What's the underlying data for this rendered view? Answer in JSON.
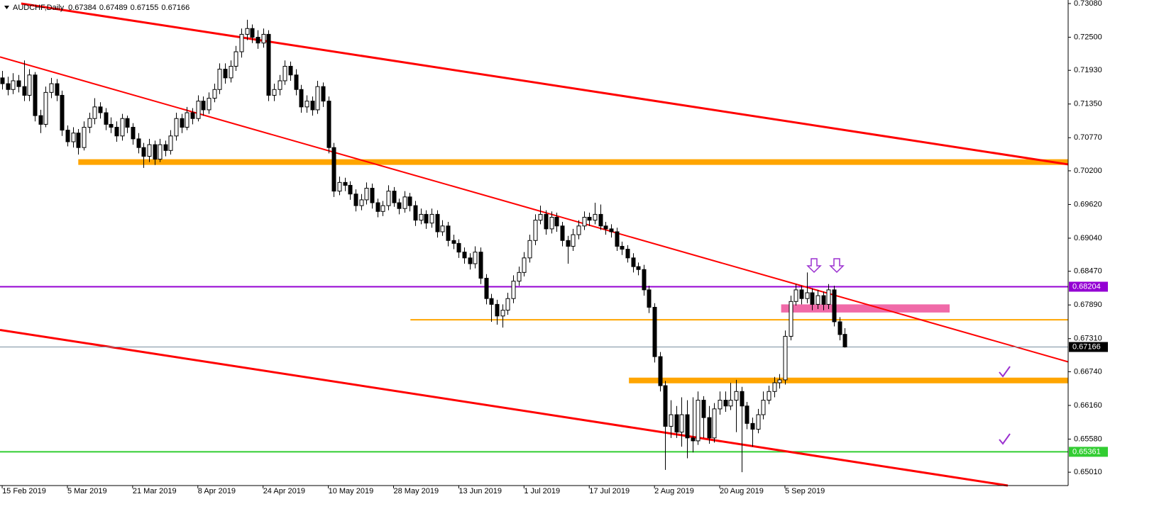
{
  "chart_data": {
    "type": "candlestick",
    "title": "AUDCHF,Daily",
    "xlim": [
      -0.4,
      196.1
    ],
    "ylim": [
      0.6478,
      0.73141
    ],
    "xticks": [
      {
        "value": 0,
        "label": "15 Feb 2019"
      },
      {
        "value": 12,
        "label": "5 Mar 2019"
      },
      {
        "value": 24,
        "label": "21 Mar 2019"
      },
      {
        "value": 36,
        "label": "8 Apr 2019"
      },
      {
        "value": 48,
        "label": "24 Apr 2019"
      },
      {
        "value": 60,
        "label": "10 May 2019"
      },
      {
        "value": 72,
        "label": "28 May 2019"
      },
      {
        "value": 84,
        "label": "13 Jun 2019"
      },
      {
        "value": 96,
        "label": "1 Jul 2019"
      },
      {
        "value": 108,
        "label": "17 Jul 2019"
      },
      {
        "value": 120,
        "label": "2 Aug 2019"
      },
      {
        "value": 132,
        "label": "20 Aug 2019"
      },
      {
        "value": 144,
        "label": "5 Sep 2019"
      }
    ],
    "yticks": [
      {
        "value": 0.7308,
        "label": "0.73080"
      },
      {
        "value": 0.725,
        "label": "0.72500"
      },
      {
        "value": 0.7193,
        "label": "0.71930"
      },
      {
        "value": 0.7135,
        "label": "0.71350"
      },
      {
        "value": 0.7077,
        "label": "0.70770"
      },
      {
        "value": 0.702,
        "label": "0.70200"
      },
      {
        "value": 0.6962,
        "label": "0.69620"
      },
      {
        "value": 0.6904,
        "label": "0.69040"
      },
      {
        "value": 0.6847,
        "label": "0.68470"
      },
      {
        "value": 0.6789,
        "label": "0.67890"
      },
      {
        "value": 0.6731,
        "label": "0.67310"
      },
      {
        "value": 0.6674,
        "label": "0.66740"
      },
      {
        "value": 0.6616,
        "label": "0.66160"
      },
      {
        "value": 0.6558,
        "label": "0.65580"
      },
      {
        "value": 0.6501,
        "label": "0.65010"
      }
    ],
    "candles": [
      [
        0.718,
        0.7192,
        0.716,
        0.717
      ],
      [
        0.717,
        0.7182,
        0.715,
        0.716
      ],
      [
        0.716,
        0.7188,
        0.7152,
        0.7175
      ],
      [
        0.7175,
        0.7185,
        0.7155,
        0.7165
      ],
      [
        0.7165,
        0.721,
        0.714,
        0.715
      ],
      [
        0.715,
        0.7195,
        0.714,
        0.7185
      ],
      [
        0.7185,
        0.719,
        0.7105,
        0.7115
      ],
      [
        0.7115,
        0.7125,
        0.7085,
        0.71
      ],
      [
        0.71,
        0.7165,
        0.7095,
        0.7155
      ],
      [
        0.7155,
        0.718,
        0.7145,
        0.717
      ],
      [
        0.717,
        0.7178,
        0.714,
        0.715
      ],
      [
        0.715,
        0.7158,
        0.708,
        0.709
      ],
      [
        0.709,
        0.7098,
        0.7062,
        0.707
      ],
      [
        0.707,
        0.7095,
        0.706,
        0.7085
      ],
      [
        0.7085,
        0.7092,
        0.7048,
        0.706
      ],
      [
        0.706,
        0.7105,
        0.7055,
        0.7095
      ],
      [
        0.7095,
        0.712,
        0.7085,
        0.711
      ],
      [
        0.711,
        0.7145,
        0.71,
        0.713
      ],
      [
        0.713,
        0.7138,
        0.711,
        0.712
      ],
      [
        0.712,
        0.7128,
        0.709,
        0.71
      ],
      [
        0.71,
        0.7112,
        0.7085,
        0.7095
      ],
      [
        0.7095,
        0.7105,
        0.707,
        0.708
      ],
      [
        0.708,
        0.7118,
        0.7072,
        0.711
      ],
      [
        0.711,
        0.7115,
        0.7085,
        0.7095
      ],
      [
        0.7095,
        0.7102,
        0.7065,
        0.7075
      ],
      [
        0.7075,
        0.7085,
        0.705,
        0.706
      ],
      [
        0.706,
        0.7068,
        0.7025,
        0.7045
      ],
      [
        0.7045,
        0.7075,
        0.7035,
        0.7065
      ],
      [
        0.7065,
        0.7072,
        0.703,
        0.704
      ],
      [
        0.704,
        0.7075,
        0.7035,
        0.7065
      ],
      [
        0.7065,
        0.7072,
        0.7045,
        0.7055
      ],
      [
        0.7055,
        0.709,
        0.7048,
        0.708
      ],
      [
        0.708,
        0.712,
        0.7072,
        0.711
      ],
      [
        0.711,
        0.7118,
        0.7085,
        0.7095
      ],
      [
        0.7095,
        0.713,
        0.709,
        0.712
      ],
      [
        0.712,
        0.7128,
        0.71,
        0.711
      ],
      [
        0.711,
        0.715,
        0.7105,
        0.714
      ],
      [
        0.714,
        0.7148,
        0.7115,
        0.7125
      ],
      [
        0.7125,
        0.7155,
        0.7118,
        0.7145
      ],
      [
        0.7145,
        0.717,
        0.7138,
        0.716
      ],
      [
        0.716,
        0.7205,
        0.7152,
        0.7195
      ],
      [
        0.7195,
        0.7205,
        0.717,
        0.718
      ],
      [
        0.718,
        0.721,
        0.7172,
        0.72
      ],
      [
        0.72,
        0.7235,
        0.7192,
        0.7225
      ],
      [
        0.7225,
        0.7265,
        0.7215,
        0.7255
      ],
      [
        0.7255,
        0.728,
        0.7245,
        0.7265
      ],
      [
        0.7265,
        0.7272,
        0.724,
        0.725
      ],
      [
        0.725,
        0.7262,
        0.723,
        0.724
      ],
      [
        0.724,
        0.7265,
        0.7232,
        0.7255
      ],
      [
        0.7255,
        0.7262,
        0.714,
        0.715
      ],
      [
        0.715,
        0.717,
        0.714,
        0.716
      ],
      [
        0.716,
        0.7185,
        0.715,
        0.7175
      ],
      [
        0.7175,
        0.721,
        0.7168,
        0.72
      ],
      [
        0.72,
        0.7208,
        0.7175,
        0.7185
      ],
      [
        0.7185,
        0.7195,
        0.715,
        0.716
      ],
      [
        0.716,
        0.7168,
        0.712,
        0.713
      ],
      [
        0.713,
        0.715,
        0.712,
        0.714
      ],
      [
        0.714,
        0.7148,
        0.7115,
        0.7125
      ],
      [
        0.7125,
        0.7175,
        0.7118,
        0.7165
      ],
      [
        0.7165,
        0.7172,
        0.713,
        0.714
      ],
      [
        0.714,
        0.7148,
        0.705,
        0.706
      ],
      [
        0.706,
        0.7068,
        0.6975,
        0.6985
      ],
      [
        0.6985,
        0.701,
        0.6978,
        0.7
      ],
      [
        0.7,
        0.7008,
        0.6985,
        0.6995
      ],
      [
        0.6995,
        0.7002,
        0.697,
        0.698
      ],
      [
        0.698,
        0.6988,
        0.695,
        0.696
      ],
      [
        0.696,
        0.698,
        0.6952,
        0.697
      ],
      [
        0.697,
        0.7,
        0.6962,
        0.699
      ],
      [
        0.699,
        0.6998,
        0.6955,
        0.6965
      ],
      [
        0.6965,
        0.6972,
        0.694,
        0.695
      ],
      [
        0.695,
        0.6968,
        0.6942,
        0.696
      ],
      [
        0.696,
        0.6995,
        0.6952,
        0.6985
      ],
      [
        0.6985,
        0.6992,
        0.6958,
        0.6965
      ],
      [
        0.6965,
        0.6972,
        0.6945,
        0.6955
      ],
      [
        0.6955,
        0.6985,
        0.6948,
        0.6975
      ],
      [
        0.6975,
        0.6982,
        0.695,
        0.696
      ],
      [
        0.696,
        0.6968,
        0.6925,
        0.6935
      ],
      [
        0.6935,
        0.6955,
        0.6928,
        0.6945
      ],
      [
        0.6945,
        0.6952,
        0.692,
        0.693
      ],
      [
        0.693,
        0.6955,
        0.6922,
        0.6945
      ],
      [
        0.6945,
        0.6952,
        0.6905,
        0.6915
      ],
      [
        0.6915,
        0.6935,
        0.6908,
        0.6925
      ],
      [
        0.6925,
        0.6932,
        0.689,
        0.69
      ],
      [
        0.69,
        0.691,
        0.6885,
        0.6895
      ],
      [
        0.6895,
        0.6902,
        0.687,
        0.688
      ],
      [
        0.688,
        0.6888,
        0.686,
        0.687
      ],
      [
        0.687,
        0.6878,
        0.685,
        0.686
      ],
      [
        0.686,
        0.689,
        0.6852,
        0.688
      ],
      [
        0.688,
        0.6888,
        0.6825,
        0.6835
      ],
      [
        0.6835,
        0.6842,
        0.679,
        0.68
      ],
      [
        0.68,
        0.6808,
        0.676,
        0.679
      ],
      [
        0.679,
        0.6798,
        0.6755,
        0.677
      ],
      [
        0.677,
        0.679,
        0.675,
        0.678
      ],
      [
        0.678,
        0.681,
        0.6772,
        0.68
      ],
      [
        0.68,
        0.684,
        0.6792,
        0.683
      ],
      [
        0.683,
        0.6855,
        0.6822,
        0.6845
      ],
      [
        0.6845,
        0.688,
        0.6838,
        0.687
      ],
      [
        0.687,
        0.691,
        0.6862,
        0.69
      ],
      [
        0.69,
        0.6945,
        0.6892,
        0.6935
      ],
      [
        0.6935,
        0.696,
        0.6928,
        0.6945
      ],
      [
        0.6945,
        0.6952,
        0.691,
        0.692
      ],
      [
        0.692,
        0.695,
        0.6912,
        0.694
      ],
      [
        0.694,
        0.6948,
        0.6915,
        0.6925
      ],
      [
        0.6925,
        0.6932,
        0.689,
        0.69
      ],
      [
        0.69,
        0.6908,
        0.686,
        0.689
      ],
      [
        0.689,
        0.692,
        0.6882,
        0.691
      ],
      [
        0.691,
        0.6935,
        0.6902,
        0.6925
      ],
      [
        0.6925,
        0.695,
        0.6918,
        0.694
      ],
      [
        0.694,
        0.6948,
        0.6925,
        0.6935
      ],
      [
        0.6935,
        0.6965,
        0.6928,
        0.6945
      ],
      [
        0.6945,
        0.6962,
        0.6918,
        0.6925
      ],
      [
        0.6925,
        0.6932,
        0.691,
        0.692
      ],
      [
        0.692,
        0.6928,
        0.6905,
        0.6915
      ],
      [
        0.6915,
        0.6922,
        0.6882,
        0.689
      ],
      [
        0.689,
        0.6898,
        0.6875,
        0.6885
      ],
      [
        0.6885,
        0.6892,
        0.6862,
        0.687
      ],
      [
        0.687,
        0.6878,
        0.6845,
        0.6855
      ],
      [
        0.6855,
        0.6862,
        0.684,
        0.685
      ],
      [
        0.685,
        0.6858,
        0.6805,
        0.6815
      ],
      [
        0.6815,
        0.6822,
        0.6775,
        0.6785
      ],
      [
        0.6785,
        0.6792,
        0.669,
        0.67
      ],
      [
        0.67,
        0.6708,
        0.664,
        0.665
      ],
      [
        0.665,
        0.6658,
        0.6505,
        0.658
      ],
      [
        0.658,
        0.6625,
        0.656,
        0.66
      ],
      [
        0.66,
        0.6615,
        0.656,
        0.657
      ],
      [
        0.657,
        0.663,
        0.6545,
        0.66
      ],
      [
        0.66,
        0.6625,
        0.6525,
        0.656
      ],
      [
        0.656,
        0.663,
        0.6535,
        0.6555
      ],
      [
        0.6555,
        0.664,
        0.6548,
        0.6625
      ],
      [
        0.6625,
        0.6632,
        0.656,
        0.6595
      ],
      [
        0.6595,
        0.6615,
        0.655,
        0.656
      ],
      [
        0.656,
        0.662,
        0.6552,
        0.661
      ],
      [
        0.661,
        0.664,
        0.66,
        0.6625
      ],
      [
        0.6625,
        0.664,
        0.6605,
        0.6615
      ],
      [
        0.6615,
        0.6655,
        0.6608,
        0.6625
      ],
      [
        0.6625,
        0.666,
        0.657,
        0.664
      ],
      [
        0.664,
        0.6648,
        0.6501,
        0.6615
      ],
      [
        0.6615,
        0.6622,
        0.6575,
        0.6585
      ],
      [
        0.6585,
        0.6595,
        0.6545,
        0.6575
      ],
      [
        0.6575,
        0.661,
        0.6568,
        0.66
      ],
      [
        0.66,
        0.664,
        0.6592,
        0.6625
      ],
      [
        0.6625,
        0.665,
        0.6618,
        0.664
      ],
      [
        0.664,
        0.6665,
        0.663,
        0.6655
      ],
      [
        0.6655,
        0.667,
        0.6645,
        0.666
      ],
      [
        0.666,
        0.6745,
        0.6652,
        0.6735
      ],
      [
        0.6735,
        0.6805,
        0.6728,
        0.6795
      ],
      [
        0.6795,
        0.6825,
        0.6788,
        0.6815
      ],
      [
        0.6815,
        0.6822,
        0.679,
        0.68
      ],
      [
        0.68,
        0.6845,
        0.6792,
        0.681
      ],
      [
        0.681,
        0.6818,
        0.678,
        0.679
      ],
      [
        0.679,
        0.6815,
        0.6782,
        0.6805
      ],
      [
        0.6805,
        0.6812,
        0.678,
        0.679
      ],
      [
        0.679,
        0.6825,
        0.6782,
        0.6815
      ],
      [
        0.6815,
        0.6822,
        0.6752,
        0.676
      ],
      [
        0.676,
        0.6768,
        0.6728,
        0.6738
      ],
      [
        0.67384,
        0.67489,
        0.67155,
        0.67166
      ]
    ],
    "levels": [
      {
        "price": 0.7035,
        "from": 14,
        "color": "#ffa500",
        "style": "zone"
      },
      {
        "price": 0.67635,
        "from": 75.1,
        "color": "#ffa500",
        "style": "line"
      },
      {
        "price": 0.6659,
        "from": 115.3,
        "color": "#ffa500",
        "style": "zone"
      },
      {
        "price": 0.68204,
        "color": "#9400d3",
        "style": "line"
      },
      {
        "price": 0.65361,
        "color": "#32cd32",
        "style": "line"
      }
    ],
    "trendlines": [
      {
        "from": [
          3.5,
          0.7308
        ],
        "to": [
          196.1,
          0.7031
        ],
        "color": "#ff0000",
        "style": "thick"
      },
      {
        "from": [
          -0.4,
          0.7216
        ],
        "to": [
          196.1,
          0.6691
        ],
        "color": "#ff0000",
        "style": "thin"
      },
      {
        "from": [
          -0.4,
          0.6746
        ],
        "to": [
          185,
          0.6478
        ],
        "color": "#ff0000",
        "style": "thick"
      }
    ],
    "zones": [
      {
        "from": 143.3,
        "to": 174.3,
        "top": 0.679,
        "bottom": 0.6776,
        "color": "#f06aa8"
      }
    ],
    "price_line_color": "#7a8fa0"
  }
}
